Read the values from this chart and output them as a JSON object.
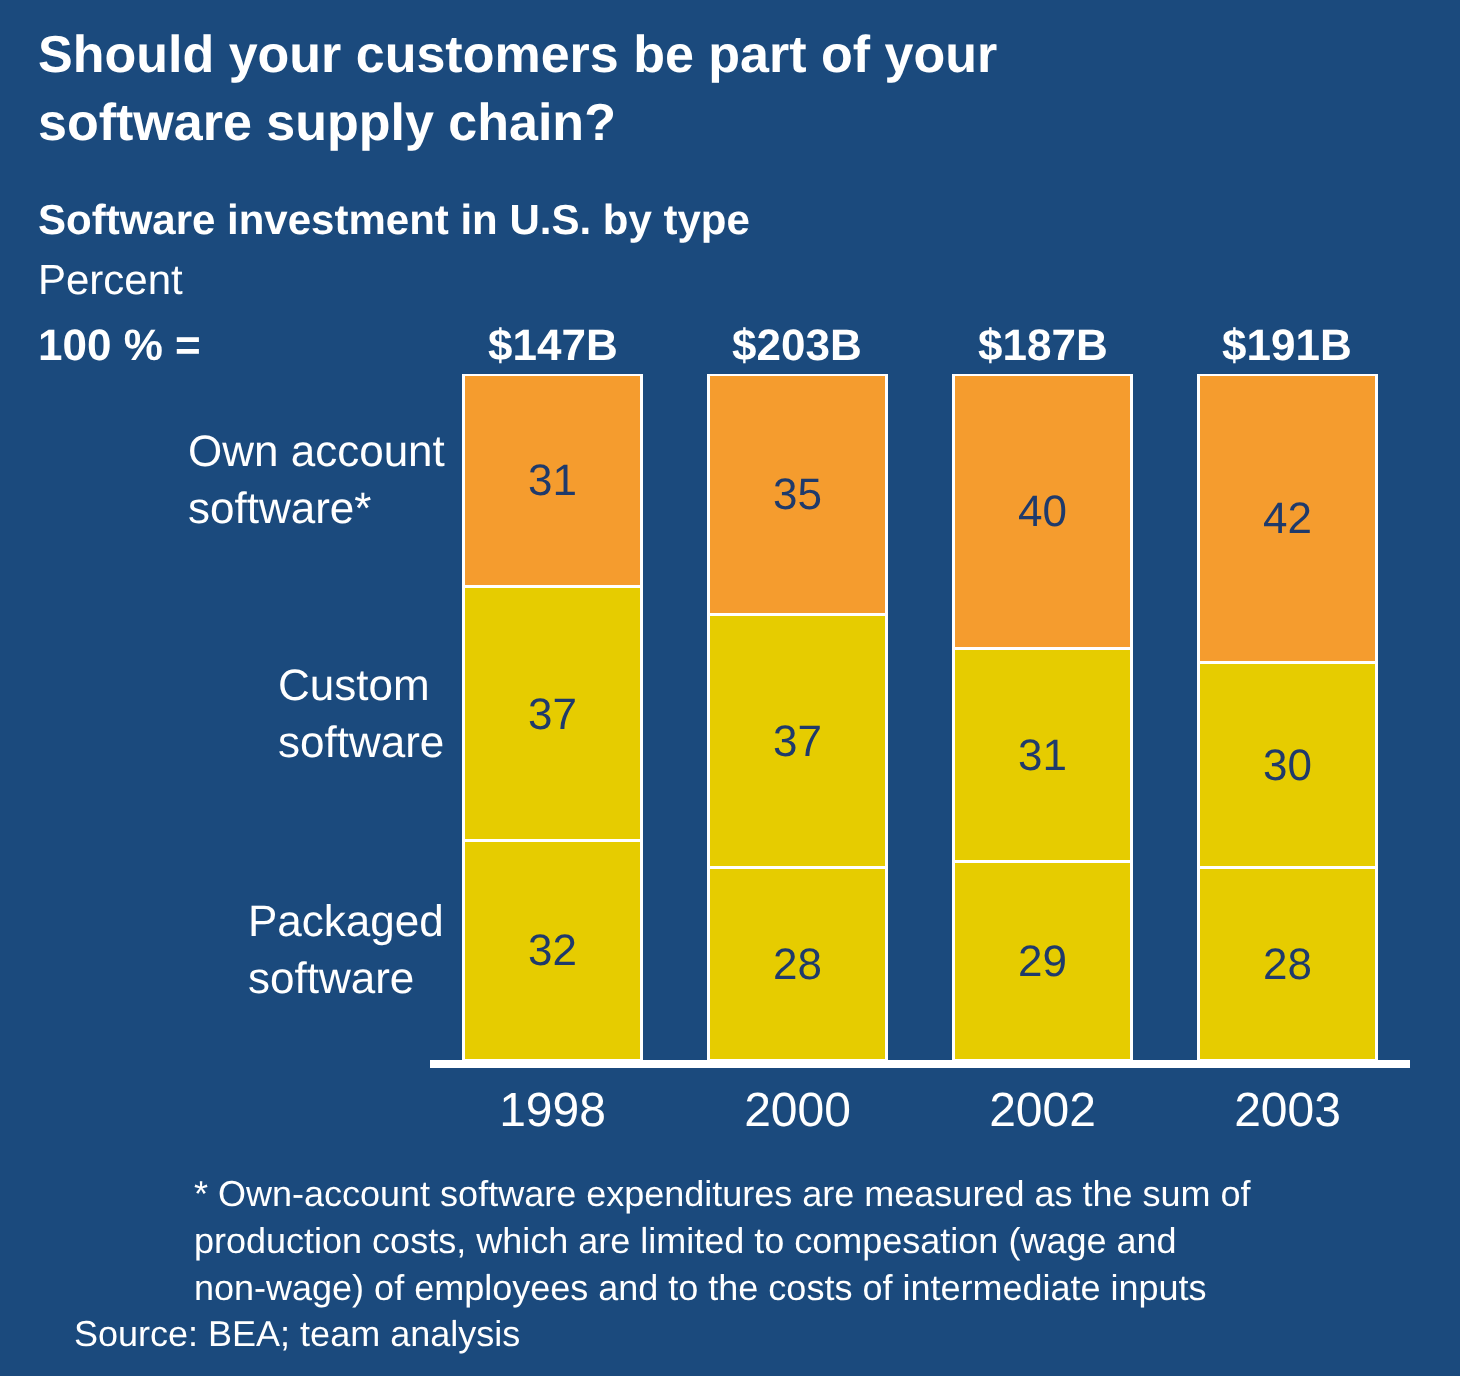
{
  "chart_data": {
    "type": "bar",
    "stacked": true,
    "title": "Should your customers be part of your software supply chain?",
    "subtitle": "Software investment in U.S. by type",
    "categories": [
      "1998",
      "2000",
      "2002",
      "2003"
    ],
    "series": [
      {
        "name": "Packaged software",
        "color": "#e6cc00",
        "values": [
          32,
          28,
          29,
          28
        ]
      },
      {
        "name": "Custom software",
        "color": "#e6cc00",
        "values": [
          37,
          37,
          31,
          30
        ]
      },
      {
        "name": "Own account software*",
        "color": "#f59c2e",
        "values": [
          31,
          35,
          40,
          42
        ]
      }
    ],
    "data_labels": true,
    "legend": false,
    "grid": false,
    "tick_labels": "x",
    "annotations": [
      "Percent",
      "100 % =",
      "$147B",
      "$203B",
      "$187B",
      "$191B",
      "* Own-account software expenditures are measured as the sum of production costs, which are limited to compesation (wage and non-wage) of employees and to the costs of intermediate inputs",
      "Source: BEA; team analysis"
    ]
  }
}
